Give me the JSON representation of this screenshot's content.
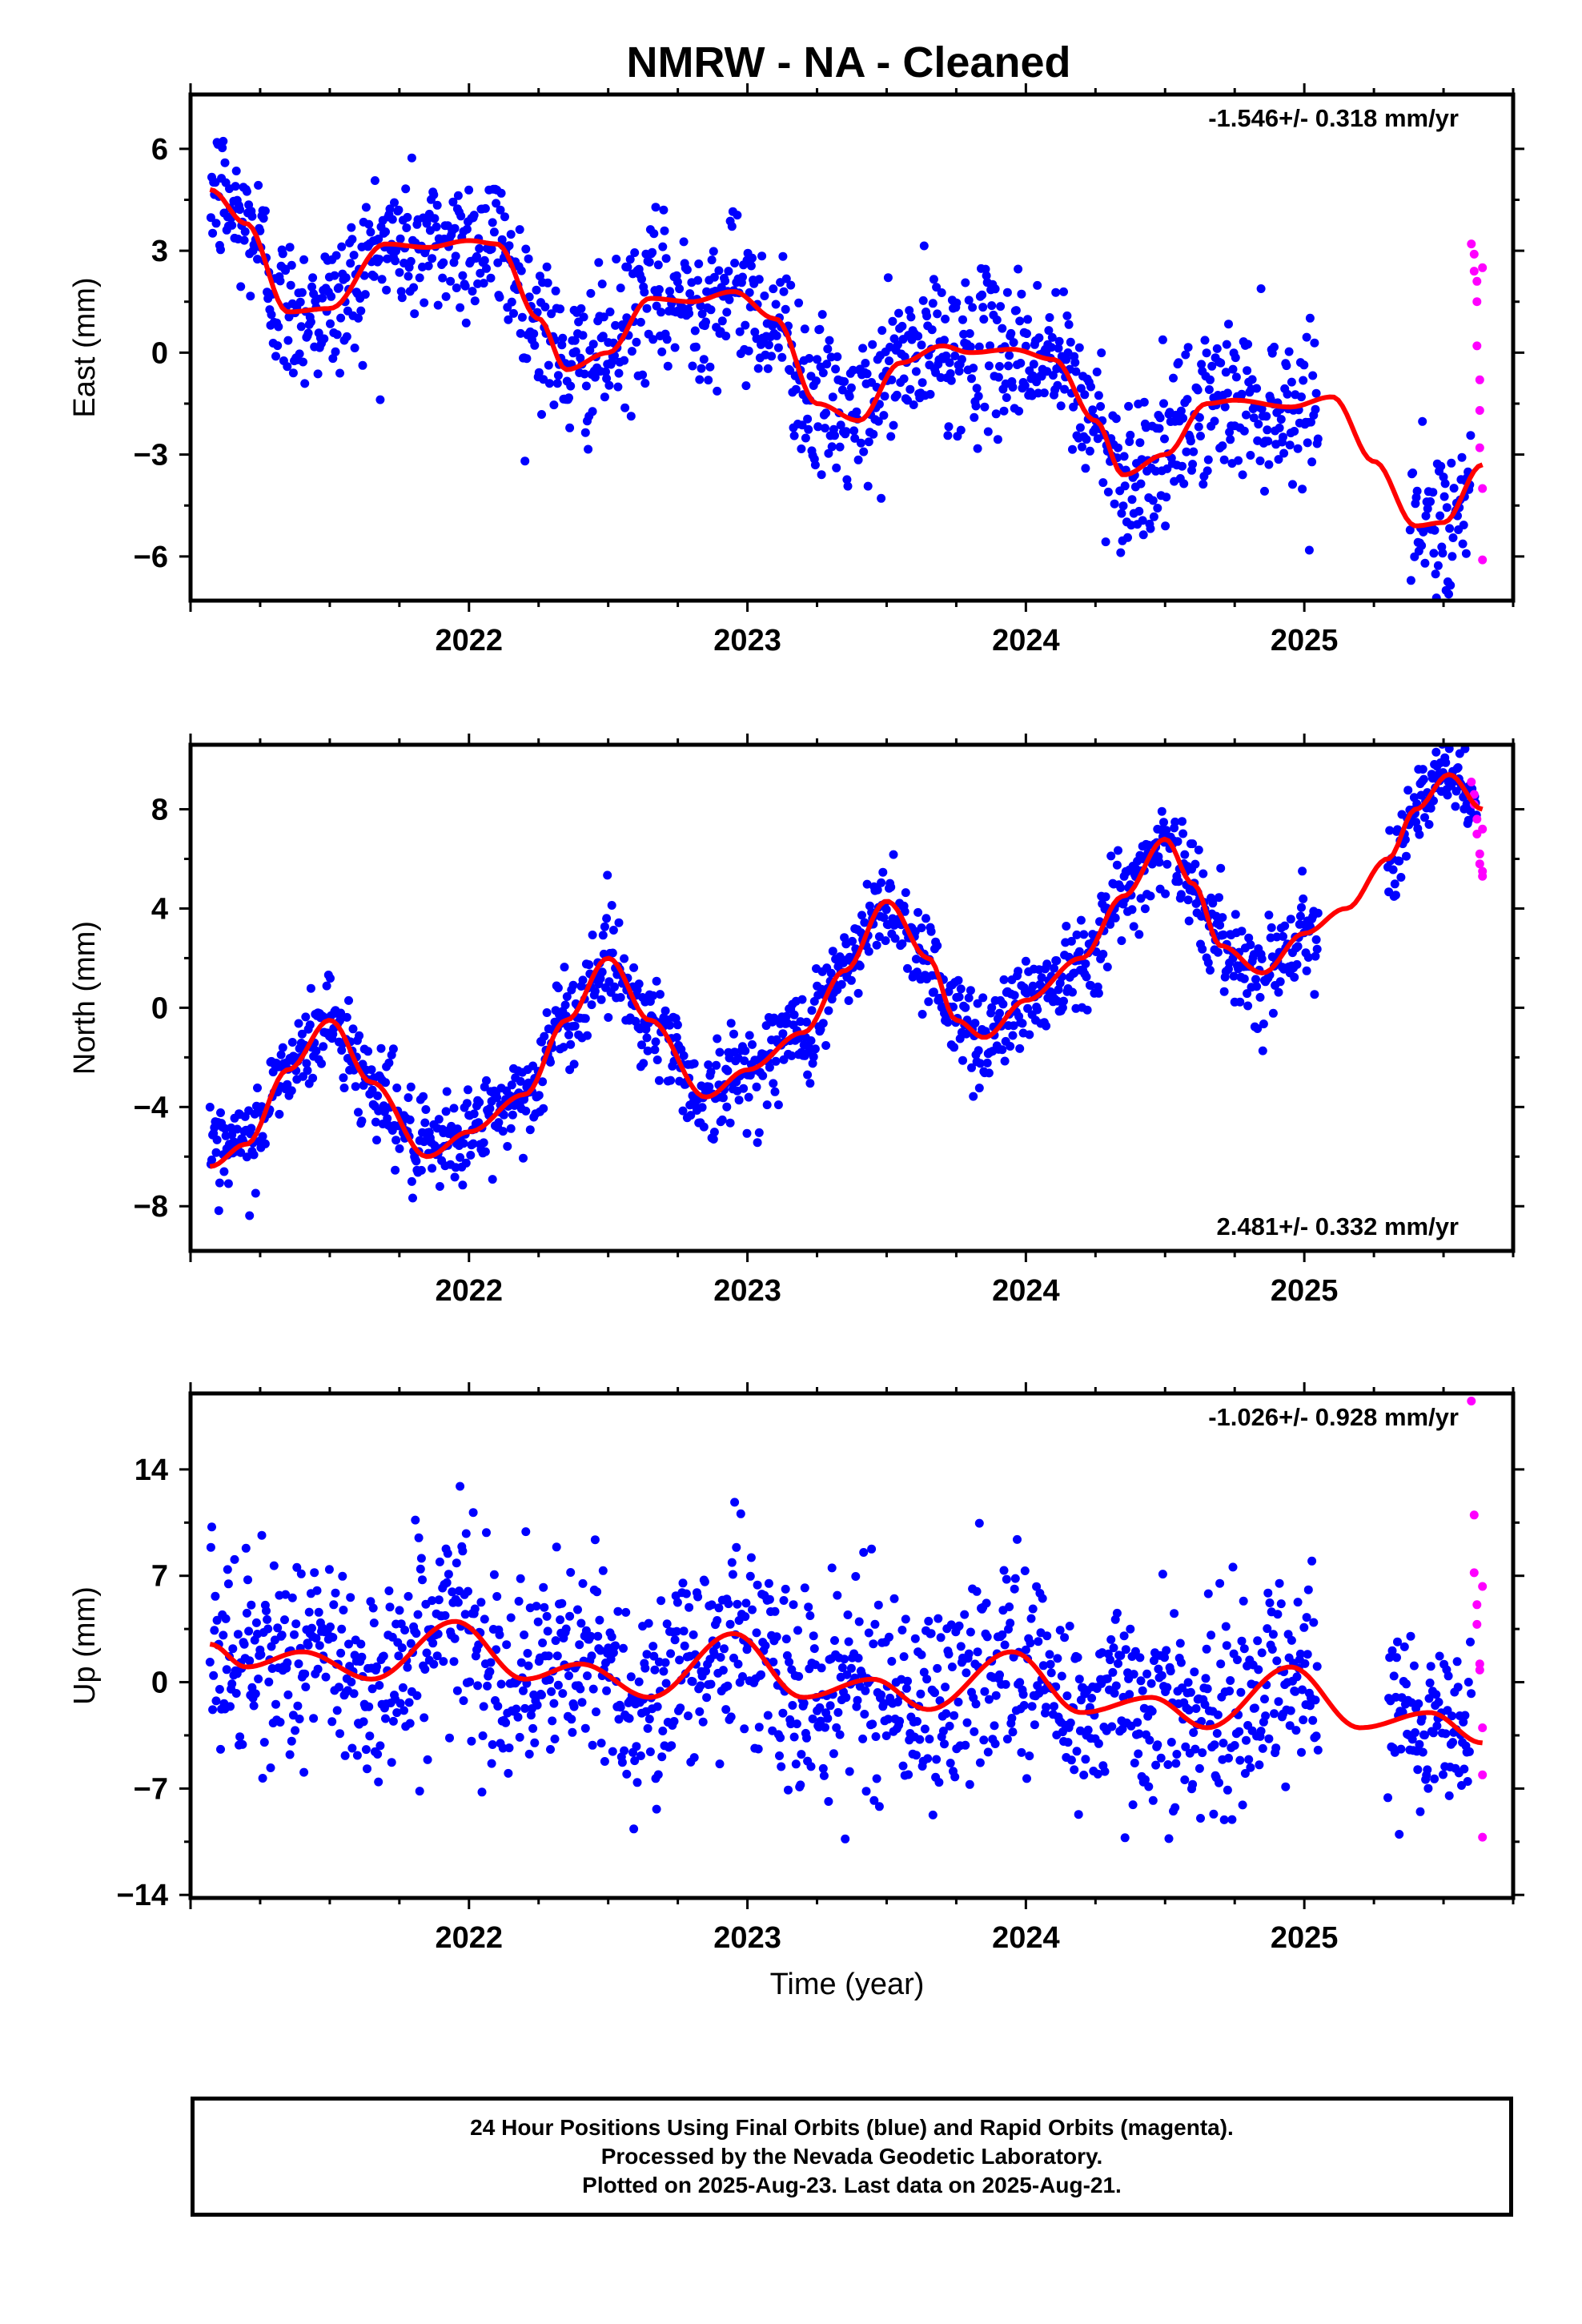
{
  "title": "NMRW  - NA - Cleaned",
  "xlabel": "Time (year)",
  "colors": {
    "final_orbits": "#0000ff",
    "rapid_orbits": "#ff00ff",
    "fit": "#ff0000",
    "frame": "#000000"
  },
  "footer": {
    "line1": "24 Hour Positions Using Final Orbits (blue) and Rapid Orbits (magenta).",
    "line2": "Processed by the Nevada Geodetic Laboratory.",
    "line3": "Plotted on 2025-Aug-23. Last data on 2025-Aug-21."
  },
  "chart_data": [
    {
      "type": "scatter",
      "ylabel": "East (mm)",
      "rate_label": "-1.546+/- 0.318 mm/yr",
      "rate_position": "top-right",
      "xlim": [
        2021.0,
        2025.75
      ],
      "ylim": [
        -7.3,
        7.6
      ],
      "xticks": [
        2022,
        2023,
        2024,
        2025
      ],
      "xtick_labels": [
        "2022",
        "2023",
        "2024",
        "2025"
      ],
      "yticks": [
        -6,
        -3,
        0,
        3,
        6
      ],
      "ytick_labels": [
        "−6",
        "−3",
        "0",
        "3",
        "6"
      ],
      "fit_curve": {
        "x": [
          2021.07,
          2021.2,
          2021.35,
          2021.5,
          2021.7,
          2021.85,
          2022.0,
          2022.1,
          2022.25,
          2022.35,
          2022.5,
          2022.65,
          2022.8,
          2022.95,
          2023.1,
          2023.25,
          2023.4,
          2023.55,
          2023.7,
          2023.8,
          2023.95,
          2024.1,
          2024.25,
          2024.35,
          2024.5,
          2024.65,
          2024.75,
          2024.95,
          2025.1,
          2025.25,
          2025.4,
          2025.5,
          2025.64
        ],
        "y": [
          4.8,
          3.8,
          1.2,
          1.3,
          3.2,
          3.1,
          3.3,
          3.2,
          1.0,
          -0.5,
          0.0,
          1.6,
          1.5,
          1.8,
          1.0,
          -1.5,
          -2.0,
          -0.3,
          0.2,
          0.0,
          0.1,
          -0.2,
          -2.0,
          -3.6,
          -3.0,
          -1.5,
          -1.4,
          -1.6,
          -1.3,
          -3.2,
          -5.1,
          -5.0,
          -3.3
        ]
      },
      "final_orbit_segments": [
        {
          "x0": 2021.07,
          "x1": 2025.05,
          "spread": 1.5
        },
        {
          "x0": 2025.38,
          "x1": 2025.6,
          "spread": 1.4
        }
      ],
      "rapid_orbit_points": {
        "x": [
          2025.6,
          2025.61,
          2025.61,
          2025.62,
          2025.62,
          2025.62,
          2025.63,
          2025.63,
          2025.63,
          2025.64,
          2025.64,
          2025.64
        ],
        "y": [
          3.2,
          2.9,
          2.4,
          2.1,
          1.5,
          0.2,
          -0.8,
          -1.7,
          -2.8,
          -4.0,
          -6.1,
          2.5
        ]
      }
    },
    {
      "type": "scatter",
      "ylabel": "North (mm)",
      "rate_label": "2.481+/- 0.332 mm/yr",
      "rate_position": "bottom-right",
      "xlim": [
        2021.0,
        2025.75
      ],
      "ylim": [
        -9.8,
        10.6
      ],
      "xticks": [
        2022,
        2023,
        2024,
        2025
      ],
      "xtick_labels": [
        "2022",
        "2023",
        "2024",
        "2025"
      ],
      "yticks": [
        -8,
        -4,
        0,
        4,
        8
      ],
      "ytick_labels": [
        "−8",
        "−4",
        "0",
        "4",
        "8"
      ],
      "fit_curve": {
        "x": [
          2021.07,
          2021.2,
          2021.35,
          2021.5,
          2021.65,
          2021.85,
          2022.0,
          2022.2,
          2022.35,
          2022.5,
          2022.65,
          2022.85,
          2023.0,
          2023.2,
          2023.35,
          2023.5,
          2023.65,
          2023.75,
          2023.85,
          2024.0,
          2024.2,
          2024.35,
          2024.5,
          2024.6,
          2024.7,
          2024.85,
          2025.0,
          2025.15,
          2025.3,
          2025.4,
          2025.52,
          2025.64
        ],
        "y": [
          -6.4,
          -5.5,
          -2.5,
          -0.5,
          -3.0,
          -6.0,
          -5.0,
          -3.5,
          -0.5,
          2.0,
          -0.5,
          -3.6,
          -2.5,
          -1.0,
          1.5,
          4.3,
          2.0,
          -0.5,
          -1.2,
          0.3,
          2.0,
          4.5,
          6.8,
          5.0,
          2.5,
          1.4,
          3.0,
          4.0,
          6.0,
          8.0,
          9.4,
          8.0
        ]
      },
      "final_orbit_segments": [
        {
          "x0": 2021.07,
          "x1": 2025.05,
          "spread": 1.3
        },
        {
          "x0": 2025.3,
          "x1": 2025.62,
          "spread": 1.0
        }
      ],
      "rapid_orbit_points": {
        "x": [
          2025.6,
          2025.61,
          2025.61,
          2025.62,
          2025.62,
          2025.63,
          2025.63,
          2025.64,
          2025.64,
          2025.64
        ],
        "y": [
          9.1,
          8.6,
          8.2,
          7.6,
          7.0,
          6.2,
          5.8,
          5.5,
          5.3,
          7.2
        ]
      }
    },
    {
      "type": "scatter",
      "ylabel": "Up (mm)",
      "rate_label": "-1.026+/- 0.928 mm/yr",
      "rate_position": "top-right",
      "xlim": [
        2021.0,
        2025.75
      ],
      "ylim": [
        -14.2,
        19.0
      ],
      "xticks": [
        2022,
        2023,
        2024,
        2025
      ],
      "xtick_labels": [
        "2022",
        "2023",
        "2024",
        "2025"
      ],
      "yticks": [
        -14,
        -7,
        0,
        7,
        14
      ],
      "ytick_labels": [
        "−14",
        "−7",
        "0",
        "7",
        "14"
      ],
      "fit_curve": {
        "x": [
          2021.07,
          2021.2,
          2021.4,
          2021.65,
          2021.95,
          2022.2,
          2022.4,
          2022.65,
          2022.95,
          2023.2,
          2023.45,
          2023.65,
          2023.95,
          2024.2,
          2024.45,
          2024.65,
          2024.95,
          2025.2,
          2025.45,
          2025.64
        ],
        "y": [
          2.5,
          1.0,
          2.0,
          0.2,
          4.0,
          0.2,
          1.2,
          -1.0,
          3.2,
          -1.0,
          0.2,
          -1.8,
          2.0,
          -2.0,
          -1.0,
          -3.0,
          1.0,
          -3.0,
          -2.0,
          -4.0
        ]
      },
      "final_orbit_segments": [
        {
          "x0": 2021.07,
          "x1": 2025.05,
          "spread": 4.5
        },
        {
          "x0": 2025.3,
          "x1": 2025.6,
          "spread": 3.5
        }
      ],
      "rapid_orbit_points": {
        "x": [
          2025.6,
          2025.61,
          2025.61,
          2025.62,
          2025.62,
          2025.63,
          2025.63,
          2025.64,
          2025.64,
          2025.64,
          2025.64
        ],
        "y": [
          18.5,
          11.0,
          7.2,
          5.1,
          3.8,
          1.2,
          0.8,
          -3.0,
          -6.1,
          -10.2,
          6.3
        ]
      }
    }
  ]
}
